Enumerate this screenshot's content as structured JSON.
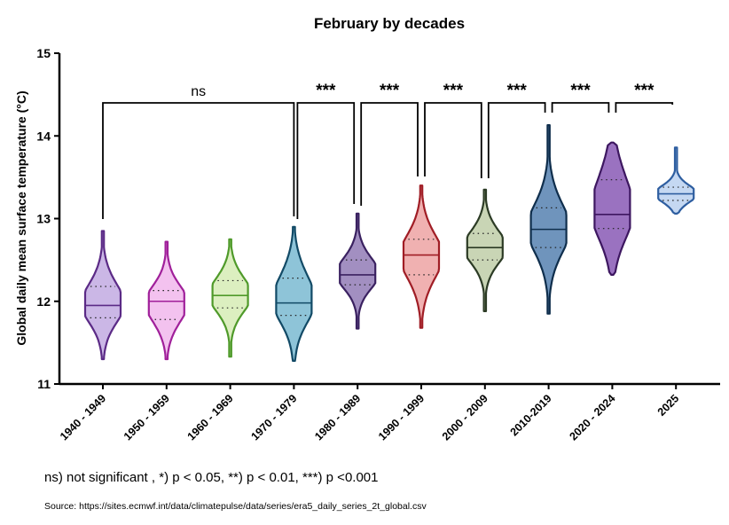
{
  "chart_data": {
    "type": "violin",
    "title": "February by decades",
    "xlabel": "",
    "ylabel": "Global daily mean surface temperature (°C)",
    "ylim": [
      11,
      15
    ],
    "yticks": [
      "11",
      "12",
      "13",
      "14",
      "15"
    ],
    "grid": false,
    "categories": [
      "1940 - 1949",
      "1950 - 1959",
      "1960 - 1969",
      "1970 - 1979",
      "1980 - 1989",
      "1990 - 1999",
      "2000 - 2009",
      "2010-2019",
      "2020 - 2024",
      "2025"
    ],
    "series": [
      {
        "category": "1940 - 1949",
        "color": "#5b2a86",
        "fill": "#cbb7e6",
        "min": 11.3,
        "max": 12.85,
        "q1": 11.8,
        "median": 11.95,
        "q3": 12.18
      },
      {
        "category": "1950 - 1959",
        "color": "#a0209a",
        "fill": "#f3c2ef",
        "min": 11.3,
        "max": 12.72,
        "q1": 11.78,
        "median": 12.0,
        "q3": 12.13
      },
      {
        "category": "1960 - 1969",
        "color": "#4f9a2a",
        "fill": "#dcefc0",
        "min": 11.33,
        "max": 12.75,
        "q1": 11.92,
        "median": 12.07,
        "q3": 12.25
      },
      {
        "category": "1970 - 1979",
        "color": "#124a66",
        "fill": "#8ec4d8",
        "min": 11.28,
        "max": 12.9,
        "q1": 11.83,
        "median": 11.98,
        "q3": 12.28
      },
      {
        "category": "1980 - 1989",
        "color": "#3a2160",
        "fill": "#a28fc1",
        "min": 11.67,
        "max": 13.06,
        "q1": 12.2,
        "median": 12.32,
        "q3": 12.5
      },
      {
        "category": "1990 - 1999",
        "color": "#a01d25",
        "fill": "#f0b1b1",
        "min": 11.68,
        "max": 13.4,
        "q1": 12.32,
        "median": 12.56,
        "q3": 12.75
      },
      {
        "category": "2000 - 2009",
        "color": "#2c3b25",
        "fill": "#c9d5b5",
        "min": 11.88,
        "max": 13.35,
        "q1": 12.5,
        "median": 12.65,
        "q3": 12.82
      },
      {
        "category": "2010-2019",
        "color": "#0f2e4c",
        "fill": "#6f94bc",
        "min": 11.85,
        "max": 14.13,
        "q1": 12.65,
        "median": 12.87,
        "q3": 13.13
      },
      {
        "category": "2020 - 2024",
        "color": "#3d1760",
        "fill": "#9a72c0",
        "min": 12.32,
        "max": 13.92,
        "q1": 12.88,
        "median": 13.05,
        "q3": 13.47
      },
      {
        "category": "2025",
        "color": "#2e5ea0",
        "fill": "#c5d8f2",
        "min": 13.06,
        "max": 13.86,
        "q1": 13.22,
        "median": 13.3,
        "q3": 13.38
      }
    ],
    "comparisons": [
      {
        "from": "1940 - 1949",
        "to": "1970 - 1979",
        "label": "ns"
      },
      {
        "from": "1970 - 1979",
        "to": "1980 - 1989",
        "label": "***"
      },
      {
        "from": "1980 - 1989",
        "to": "1990 - 1999",
        "label": "***"
      },
      {
        "from": "1990 - 1999",
        "to": "2000 - 2009",
        "label": "***"
      },
      {
        "from": "2000 - 2009",
        "to": "2010-2019",
        "label": "***"
      },
      {
        "from": "2010-2019",
        "to": "2020 - 2024",
        "label": "***"
      },
      {
        "from": "2020 - 2024",
        "to": "2025",
        "label": "***"
      }
    ]
  },
  "footnote": "ns) not significant , *) p < 0.05, **) p < 0.01, ***) p <0.001",
  "source": "Source: https://sites.ecmwf.int/data/climatepulse/data/series/era5_daily_series_2t_global.csv"
}
